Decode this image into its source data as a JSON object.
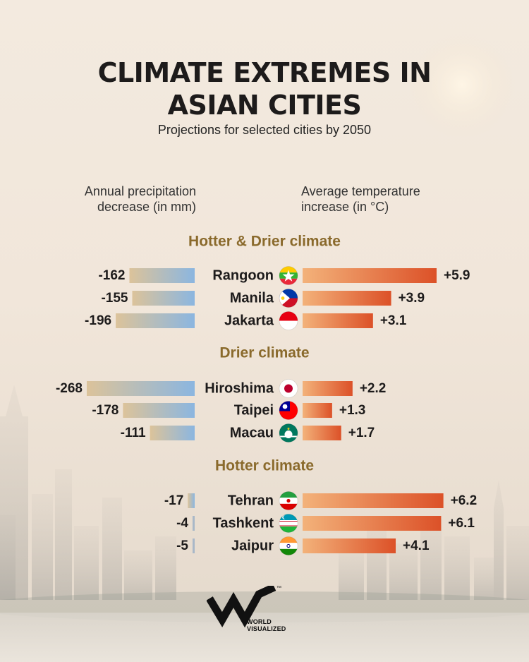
{
  "header": {
    "title_line1": "CLIMATE EXTREMES IN",
    "title_line2": "ASIAN CITIES",
    "subtitle": "Projections for selected cities by 2050"
  },
  "columns": {
    "left_line1": "Annual precipitation",
    "left_line2": "decrease (in mm)",
    "right_line1": "Average temperature",
    "right_line2": "increase (in °C)"
  },
  "colors": {
    "group_title": "#8a6a2c",
    "precip_start": "#dcc39a",
    "precip_end": "#8bb6e0",
    "temp_start": "#f3b27a",
    "temp_end": "#dc5128",
    "text": "#1d1b1b"
  },
  "chart_data": {
    "type": "bar",
    "title": "CLIMATE EXTREMES IN ASIAN CITIES",
    "subtitle": "Projections for selected cities by 2050",
    "xlabel_left": "Annual precipitation decrease (in mm)",
    "xlabel_right": "Average temperature increase (in °C)",
    "groups": [
      {
        "name": "Hotter & Drier climate",
        "cities": [
          {
            "city": "Rangoon",
            "flag": "myanmar-flag",
            "precip": -162,
            "precip_label": "-162",
            "temp": 5.9,
            "temp_label": "+5.9"
          },
          {
            "city": "Manila",
            "flag": "philippines-flag",
            "precip": -155,
            "precip_label": "-155",
            "temp": 3.9,
            "temp_label": "+3.9"
          },
          {
            "city": "Jakarta",
            "flag": "indonesia-flag",
            "precip": -196,
            "precip_label": "-196",
            "temp": 3.1,
            "temp_label": "+3.1"
          }
        ]
      },
      {
        "name": "Drier climate",
        "cities": [
          {
            "city": "Hiroshima",
            "flag": "japan-flag",
            "precip": -268,
            "precip_label": "-268",
            "temp": 2.2,
            "temp_label": "+2.2"
          },
          {
            "city": "Taipei",
            "flag": "taiwan-flag",
            "precip": -178,
            "precip_label": "-178",
            "temp": 1.3,
            "temp_label": "+1.3"
          },
          {
            "city": "Macau",
            "flag": "macau-flag",
            "precip": -111,
            "precip_label": "-111",
            "temp": 1.7,
            "temp_label": "+1.7"
          }
        ]
      },
      {
        "name": "Hotter climate",
        "cities": [
          {
            "city": "Tehran",
            "flag": "iran-flag",
            "precip": -17,
            "precip_label": "-17",
            "temp": 6.2,
            "temp_label": "+6.2"
          },
          {
            "city": "Tashkent",
            "flag": "uzbekistan-flag",
            "precip": -4,
            "precip_label": "-4",
            "temp": 6.1,
            "temp_label": "+6.1"
          },
          {
            "city": "Jaipur",
            "flag": "india-flag",
            "precip": -5,
            "precip_label": "-5",
            "temp": 4.1,
            "temp_label": "+4.1"
          }
        ]
      }
    ]
  },
  "brand": {
    "line1": "WORLD",
    "line2": "VISUALIZED",
    "trademark": "™"
  }
}
